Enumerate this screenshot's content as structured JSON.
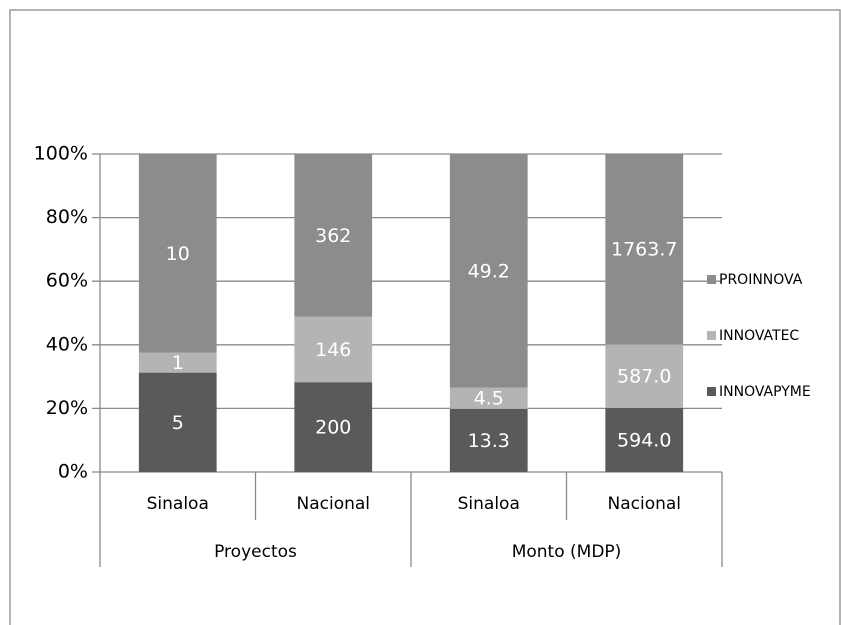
{
  "chart_data": {
    "type": "bar",
    "stacked": "percent",
    "groups": [
      {
        "name": "Proyectos",
        "categories": [
          "Sinaloa",
          "Nacional"
        ]
      },
      {
        "name": "Monto (MDP)",
        "categories": [
          "Sinaloa",
          "Nacional"
        ]
      }
    ],
    "series": [
      {
        "name": "INNOVAPYME",
        "color": "#5a5a5a",
        "values": [
          5,
          200,
          13.3,
          594
        ],
        "value_labels": [
          "5",
          "200",
          "13.3",
          "594.0"
        ]
      },
      {
        "name": "INNOVATEC",
        "color": "#b4b4b4",
        "values": [
          1,
          146,
          4.5,
          587
        ],
        "value_labels": [
          "1",
          "146",
          "4.5",
          "587.0"
        ]
      },
      {
        "name": "PROINNOVA",
        "color": "#8c8c8c",
        "values": [
          10,
          362,
          49.2,
          1763.7
        ],
        "value_labels": [
          "10",
          "362",
          "49.2",
          "1763.7"
        ]
      }
    ],
    "ylim": [
      0,
      100
    ],
    "yticks": [
      {
        "value": 0,
        "label": "0%"
      },
      {
        "value": 20,
        "label": "20%"
      },
      {
        "value": 40,
        "label": "40%"
      },
      {
        "value": 60,
        "label": "60%"
      },
      {
        "value": 80,
        "label": "80%"
      },
      {
        "value": 100,
        "label": "100%"
      }
    ],
    "grid": true,
    "legend": "right"
  }
}
